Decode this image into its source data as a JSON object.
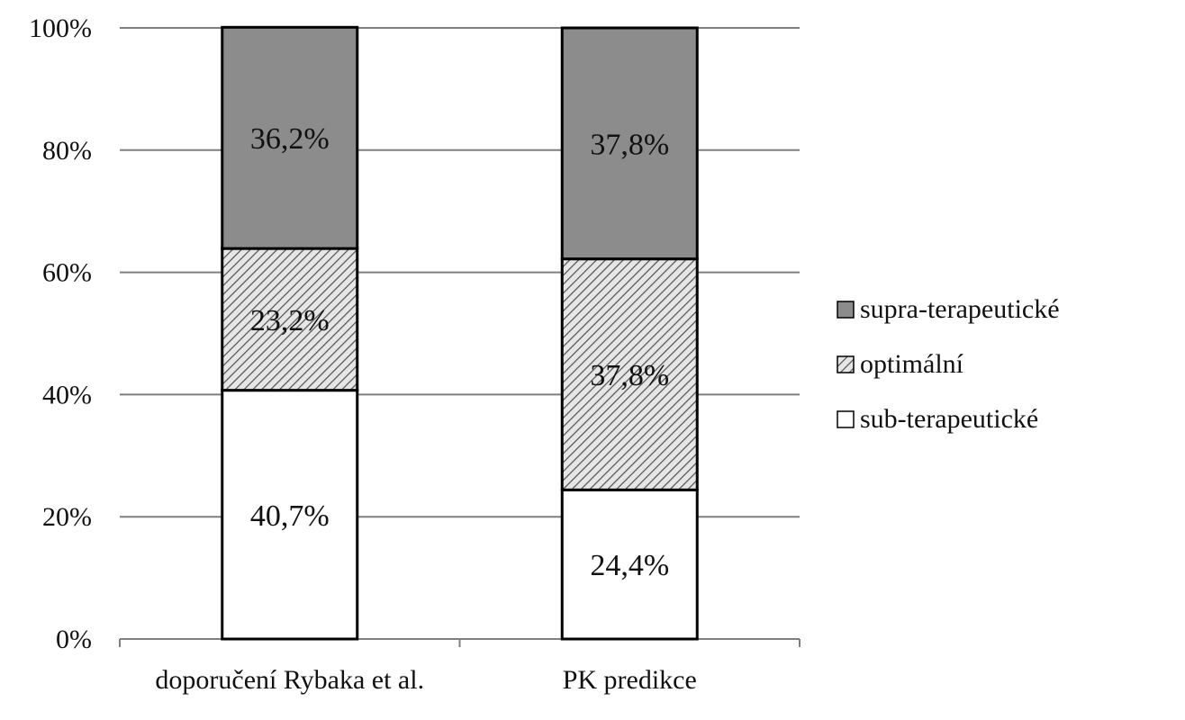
{
  "chart_data": {
    "type": "bar",
    "stacked": true,
    "percent_stacked": true,
    "categories": [
      "doporučení Rybaka et al.",
      "PK predikce"
    ],
    "series": [
      {
        "name": "sub-terapeutické",
        "values": [
          40.7,
          24.4
        ],
        "labels": [
          "40,7%",
          "24,4%"
        ],
        "fill": "#ffffff",
        "pattern": "none"
      },
      {
        "name": "optimální",
        "values": [
          23.2,
          37.8
        ],
        "labels": [
          "23,2%",
          "37,8%"
        ],
        "fill": "#cfcfcf",
        "pattern": "diagonal-hatch"
      },
      {
        "name": "supra-terapeutické",
        "values": [
          36.2,
          37.8
        ],
        "labels": [
          "36,2%",
          "37,8%"
        ],
        "fill": "#8c8c8c",
        "pattern": "none"
      }
    ],
    "ylim": [
      0,
      100
    ],
    "y_ticks": [
      0,
      20,
      40,
      60,
      80,
      100
    ],
    "y_tick_labels": [
      "0%",
      "20%",
      "40%",
      "60%",
      "80%",
      "100%"
    ],
    "grid": true,
    "legend_position": "right",
    "legend_order": [
      "supra-terapeutické",
      "optimální",
      "sub-terapeutické"
    ],
    "colors": {
      "grid": "#7f7f7f",
      "bar_outline": "#000000",
      "axis": "#7f7f7f"
    }
  }
}
